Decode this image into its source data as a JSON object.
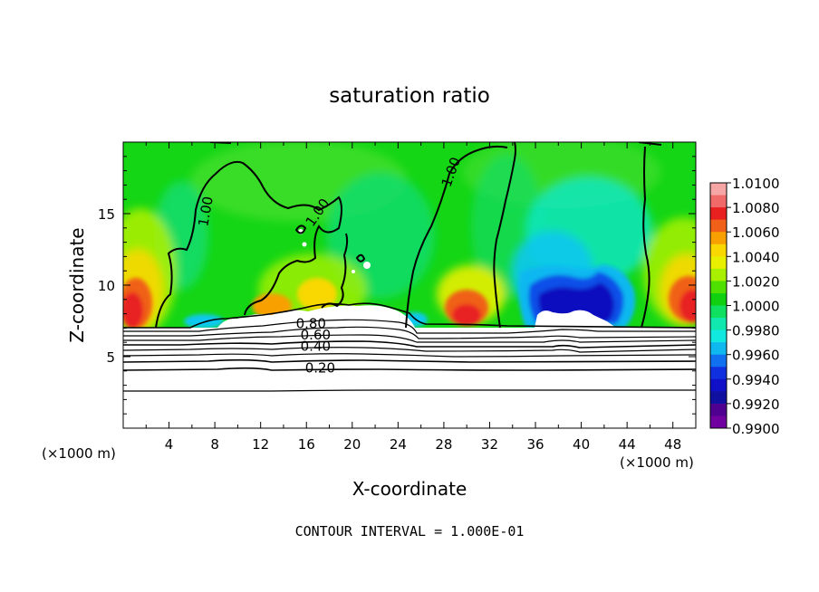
{
  "chart_data": {
    "type": "heatmap",
    "title": "saturation ratio",
    "xlabel": "X-coordinate",
    "ylabel": "Z-coordinate",
    "x_unit": "(×1000 m)",
    "xlim": [
      0,
      50
    ],
    "ylim": [
      0,
      20
    ],
    "xticks": [
      4,
      8,
      12,
      16,
      20,
      24,
      28,
      32,
      36,
      40,
      44,
      48
    ],
    "yticks": [
      5,
      10,
      15
    ],
    "footer": "CONTOUR INTERVAL = 1.000E-01",
    "colorbar": {
      "min": 0.99,
      "max": 1.01,
      "labels": [
        "1.0100",
        "1.0080",
        "1.0060",
        "1.0040",
        "1.0020",
        "1.0000",
        "0.9980",
        "0.9960",
        "0.9940",
        "0.9920",
        "0.9900"
      ],
      "colors": [
        "#f7a6a6",
        "#f06a6a",
        "#e82020",
        "#f06018",
        "#f8a000",
        "#f8d800",
        "#e8f000",
        "#a8f000",
        "#50e000",
        "#10d010",
        "#10e060",
        "#10e8b0",
        "#10e8e0",
        "#10b8f0",
        "#1070f0",
        "#1030e0",
        "#1010c8",
        "#1010a0",
        "#500090",
        "#7000a0"
      ]
    },
    "contour_labels": [
      {
        "text": "1.00",
        "x": 7.6,
        "z": 15.1,
        "rotate": -80
      },
      {
        "text": "1.00",
        "x": 17.3,
        "z": 14.9,
        "rotate": -55
      },
      {
        "text": "1.00",
        "x": 29.0,
        "z": 17.8,
        "rotate": -70
      },
      {
        "text": "0.80",
        "x": 16.4,
        "z": 7.0,
        "rotate": 0
      },
      {
        "text": "0.60",
        "x": 16.8,
        "z": 6.2,
        "rotate": 0
      },
      {
        "text": "0.40",
        "x": 16.8,
        "z": 5.4,
        "rotate": 0
      },
      {
        "text": "0.20",
        "x": 17.2,
        "z": 3.9,
        "rotate": 0
      }
    ]
  }
}
